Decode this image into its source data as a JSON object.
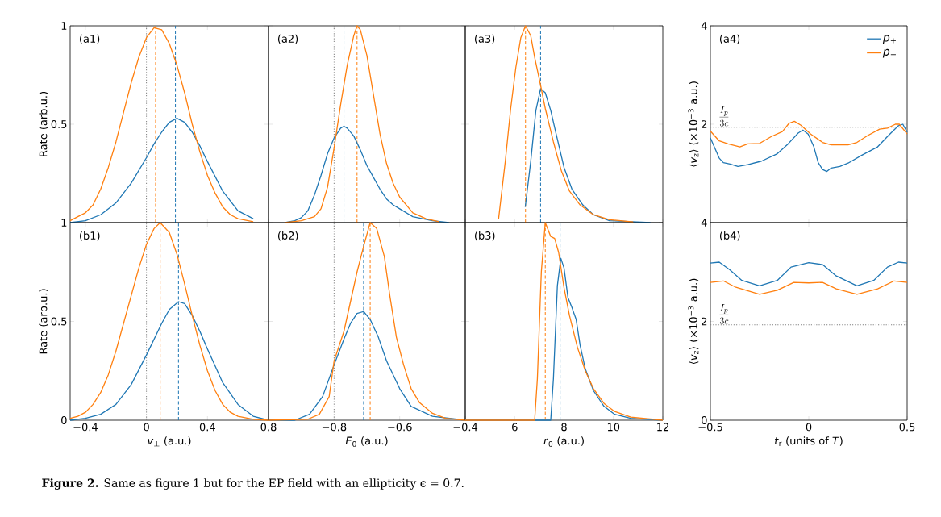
{
  "chart_data": [
    {
      "type": "line",
      "title": "(a1)",
      "ylabel": "Rate (arb.u.)",
      "xlim": [
        -0.5,
        0.8
      ],
      "ylim": [
        0,
        1
      ],
      "xticks": [
        -0.4,
        0,
        0.4,
        0.8
      ],
      "yticks": [
        {
          "value": 0,
          "label": null
        },
        0.5,
        1
      ],
      "tick_labels": "y",
      "annotations": [
        "**Figure 2.** Same as figure 1 but for the EP field with an ellipticity ϵ = 0.7."
      ],
      "ref_lines": [
        {
          "axis": "x",
          "value": 0,
          "color": "#808080",
          "line_style": "dotted"
        },
        {
          "axis": "x",
          "value": 0.06,
          "color": "#ff7f0e",
          "line_style": "dashed"
        },
        {
          "axis": "x",
          "value": 0.19,
          "color": "#1f77b4",
          "line_style": "dashed"
        }
      ],
      "series": [
        {
          "color": "#1f77b4",
          "x": [
            -0.5,
            -0.4,
            -0.3,
            -0.2,
            -0.1,
            0,
            0.05,
            0.1,
            0.15,
            0.2,
            0.25,
            0.3,
            0.35,
            0.4,
            0.5,
            0.6,
            0.7
          ],
          "values": [
            0,
            0.01,
            0.04,
            0.1,
            0.2,
            0.33,
            0.4,
            0.46,
            0.51,
            0.53,
            0.51,
            0.46,
            0.39,
            0.31,
            0.16,
            0.06,
            0.02
          ]
        },
        {
          "color": "#ff7f0e",
          "x": [
            -0.5,
            -0.45,
            -0.4,
            -0.35,
            -0.3,
            -0.25,
            -0.2,
            -0.15,
            -0.1,
            -0.05,
            0,
            0.05,
            0.1,
            0.15,
            0.2,
            0.25,
            0.3,
            0.35,
            0.4,
            0.45,
            0.5,
            0.55,
            0.6,
            0.7
          ],
          "values": [
            0.01,
            0.03,
            0.05,
            0.09,
            0.17,
            0.28,
            0.41,
            0.56,
            0.71,
            0.84,
            0.94,
            0.99,
            0.98,
            0.91,
            0.8,
            0.66,
            0.5,
            0.36,
            0.24,
            0.15,
            0.08,
            0.04,
            0.02,
            0.005
          ]
        }
      ]
    },
    {
      "type": "line",
      "title": "(a2)",
      "xlim": [
        -1.0,
        -0.4
      ],
      "ylim": [
        0,
        1
      ],
      "xticks": [
        -1.0,
        -0.8,
        -0.6,
        -0.4
      ],
      "yticks": [
        0,
        0.5,
        1
      ],
      "tick_labels": false,
      "ref_lines": [
        {
          "axis": "x",
          "value": -0.8,
          "color": "#808080",
          "line_style": "dotted"
        },
        {
          "axis": "x",
          "value": -0.77,
          "color": "#1f77b4",
          "line_style": "dashed"
        },
        {
          "axis": "x",
          "value": -0.73,
          "color": "#ff7f0e",
          "line_style": "dashed"
        }
      ],
      "series": [
        {
          "color": "#1f77b4",
          "x": [
            -0.95,
            -0.92,
            -0.9,
            -0.88,
            -0.86,
            -0.84,
            -0.82,
            -0.8,
            -0.78,
            -0.77,
            -0.76,
            -0.74,
            -0.72,
            -0.7,
            -0.68,
            -0.66,
            -0.64,
            -0.62,
            -0.6,
            -0.56,
            -0.5,
            -0.45
          ],
          "values": [
            0,
            0.01,
            0.025,
            0.06,
            0.14,
            0.24,
            0.35,
            0.43,
            0.48,
            0.49,
            0.48,
            0.44,
            0.37,
            0.29,
            0.23,
            0.17,
            0.12,
            0.09,
            0.07,
            0.03,
            0.01,
            0
          ]
        },
        {
          "color": "#ff7f0e",
          "x": [
            -0.95,
            -0.9,
            -0.86,
            -0.84,
            -0.82,
            -0.8,
            -0.78,
            -0.76,
            -0.74,
            -0.73,
            -0.72,
            -0.7,
            -0.68,
            -0.66,
            -0.64,
            -0.62,
            -0.6,
            -0.56,
            -0.52,
            -0.48
          ],
          "values": [
            0,
            0.01,
            0.03,
            0.07,
            0.18,
            0.38,
            0.6,
            0.8,
            0.95,
            1.0,
            0.98,
            0.85,
            0.65,
            0.45,
            0.3,
            0.2,
            0.13,
            0.05,
            0.02,
            0.005
          ]
        }
      ]
    },
    {
      "type": "line",
      "title": "(a3)",
      "xlim": [
        4,
        12
      ],
      "ylim": [
        0,
        1
      ],
      "xticks": [
        4,
        6,
        8,
        10,
        12
      ],
      "yticks": [
        0,
        0.5,
        1
      ],
      "tick_labels": false,
      "ref_lines": [
        {
          "axis": "x",
          "value": 6.44,
          "color": "#ff7f0e",
          "line_style": "dashed"
        },
        {
          "axis": "x",
          "value": 7.05,
          "color": "#1f77b4",
          "line_style": "dashed"
        }
      ],
      "series": [
        {
          "color": "#1f77b4",
          "x": [
            6.43,
            6.65,
            6.86,
            7.05,
            7.24,
            7.46,
            7.68,
            8.0,
            8.32,
            8.76,
            9.19,
            9.84,
            11.5
          ],
          "values": [
            0.08,
            0.31,
            0.57,
            0.68,
            0.66,
            0.57,
            0.45,
            0.28,
            0.17,
            0.09,
            0.04,
            0.01,
            0
          ]
        },
        {
          "color": "#ff7f0e",
          "x": [
            5.35,
            5.62,
            5.84,
            6.05,
            6.25,
            6.44,
            6.65,
            6.81,
            7.03,
            7.24,
            7.57,
            7.9,
            8.22,
            8.65,
            9.19,
            9.84,
            10.8
          ],
          "values": [
            0.02,
            0.31,
            0.58,
            0.79,
            0.94,
            1.0,
            0.95,
            0.84,
            0.71,
            0.58,
            0.41,
            0.26,
            0.16,
            0.09,
            0.04,
            0.015,
            0.003
          ]
        }
      ]
    },
    {
      "type": "line",
      "title": "(a4)",
      "ylabel": "⟨*v*$_{z}$⟩ (×10$^{−3}$ a.u.)",
      "xlim": [
        -0.5,
        0.5
      ],
      "ylim": [
        0,
        4
      ],
      "xticks": [
        -0.5,
        0,
        0.5
      ],
      "yticks": [
        {
          "value": 0,
          "label": null
        },
        2,
        4
      ],
      "tick_labels": "y",
      "legend": "top right",
      "ref_lines": [
        {
          "axis": "y",
          "value": 1.94,
          "color": "#808080",
          "line_style": "dotted",
          "label": "\\frac{I_p}{3c}"
        }
      ],
      "series": [
        {
          "name": "*p*$_{+}$",
          "color": "#1f77b4",
          "x": [
            -0.5,
            -0.455,
            -0.434,
            -0.4,
            -0.36,
            -0.31,
            -0.24,
            -0.16,
            -0.105,
            -0.054,
            -0.03,
            -0.003,
            0.026,
            0.048,
            0.07,
            0.092,
            0.114,
            0.158,
            0.2,
            0.27,
            0.35,
            0.405,
            0.456,
            0.478,
            0.5
          ],
          "values": [
            1.72,
            1.31,
            1.22,
            1.19,
            1.14,
            1.18,
            1.25,
            1.4,
            1.6,
            1.82,
            1.88,
            1.8,
            1.54,
            1.22,
            1.08,
            1.04,
            1.11,
            1.14,
            1.21,
            1.37,
            1.54,
            1.77,
            1.97,
            2.0,
            1.84
          ]
        },
        {
          "name": "*p*$_{−}$",
          "color": "#ff7f0e",
          "x": [
            -0.5,
            -0.455,
            -0.41,
            -0.35,
            -0.31,
            -0.25,
            -0.19,
            -0.134,
            -0.1,
            -0.073,
            -0.04,
            0.01,
            0.07,
            0.114,
            0.2,
            0.245,
            0.3,
            0.36,
            0.4,
            0.44,
            0.46,
            0.5
          ],
          "values": [
            1.86,
            1.66,
            1.6,
            1.54,
            1.6,
            1.61,
            1.75,
            1.85,
            2.02,
            2.06,
            1.98,
            1.8,
            1.63,
            1.58,
            1.58,
            1.63,
            1.77,
            1.9,
            1.92,
            2.0,
            2.0,
            1.8
          ]
        }
      ]
    },
    {
      "type": "line",
      "title": "(b1)",
      "xlabel": "*v*$_{⊥}$ (a.u.)",
      "ylabel": "Rate (arb.u.)",
      "xlim": [
        -0.5,
        0.8
      ],
      "ylim": [
        0,
        1
      ],
      "xticks": [
        {
          "value": -0.4,
          "label": "−0.4"
        },
        0,
        0.4,
        0.8
      ],
      "yticks": [
        0,
        0.5,
        1
      ],
      "ref_lines": [
        {
          "axis": "x",
          "value": 0,
          "color": "#808080",
          "line_style": "dotted"
        },
        {
          "axis": "x",
          "value": 0.09,
          "color": "#ff7f0e",
          "line_style": "dashed"
        },
        {
          "axis": "x",
          "value": 0.21,
          "color": "#1f77b4",
          "line_style": "dashed"
        }
      ],
      "series": [
        {
          "color": "#1f77b4",
          "x": [
            -0.5,
            -0.4,
            -0.3,
            -0.2,
            -0.1,
            0,
            0.05,
            0.1,
            0.15,
            0.21,
            0.25,
            0.3,
            0.35,
            0.4,
            0.5,
            0.6,
            0.7,
            0.8
          ],
          "values": [
            0,
            0.01,
            0.03,
            0.08,
            0.18,
            0.33,
            0.41,
            0.49,
            0.56,
            0.6,
            0.59,
            0.53,
            0.45,
            0.36,
            0.19,
            0.08,
            0.02,
            0
          ]
        },
        {
          "color": "#ff7f0e",
          "x": [
            -0.5,
            -0.45,
            -0.4,
            -0.35,
            -0.3,
            -0.25,
            -0.2,
            -0.15,
            -0.1,
            -0.05,
            0,
            0.05,
            0.09,
            0.15,
            0.2,
            0.25,
            0.3,
            0.35,
            0.4,
            0.45,
            0.5,
            0.55,
            0.6,
            0.7,
            0.8
          ],
          "values": [
            0.01,
            0.02,
            0.04,
            0.08,
            0.14,
            0.23,
            0.35,
            0.49,
            0.63,
            0.77,
            0.89,
            0.97,
            1.0,
            0.95,
            0.84,
            0.69,
            0.53,
            0.38,
            0.25,
            0.15,
            0.08,
            0.04,
            0.02,
            0.005,
            0
          ]
        }
      ]
    },
    {
      "type": "line",
      "title": "(b2)",
      "xlabel": "*E*$_{0}$ (a.u.)",
      "xlim": [
        -1.0,
        -0.4
      ],
      "ylim": [
        0,
        1
      ],
      "xticks": [
        {
          "value": -1.0,
          "label": null
        },
        {
          "value": -0.8,
          "label": "−0.8"
        },
        {
          "value": -0.6,
          "label": "−0.6"
        },
        {
          "value": -0.4,
          "label": "−0.4"
        }
      ],
      "yticks": [
        0,
        0.5,
        1
      ],
      "tick_labels": "x",
      "ref_lines": [
        {
          "axis": "x",
          "value": -0.8,
          "color": "#808080",
          "line_style": "dotted"
        },
        {
          "axis": "x",
          "value": -0.71,
          "color": "#1f77b4",
          "line_style": "dashed"
        },
        {
          "axis": "x",
          "value": -0.69,
          "color": "#ff7f0e",
          "line_style": "dashed"
        }
      ],
      "series": [
        {
          "color": "#1f77b4",
          "x": [
            -1.0,
            -0.92,
            -0.875,
            -0.835,
            -0.8,
            -0.77,
            -0.75,
            -0.73,
            -0.71,
            -0.69,
            -0.665,
            -0.64,
            -0.6,
            -0.565,
            -0.5,
            -0.4
          ],
          "values": [
            0,
            0,
            0.03,
            0.12,
            0.28,
            0.41,
            0.49,
            0.54,
            0.55,
            0.51,
            0.42,
            0.3,
            0.16,
            0.07,
            0.02,
            0
          ]
        },
        {
          "color": "#ff7f0e",
          "x": [
            -1.0,
            -0.88,
            -0.845,
            -0.815,
            -0.8,
            -0.77,
            -0.73,
            -0.71,
            -0.69,
            -0.67,
            -0.647,
            -0.63,
            -0.61,
            -0.588,
            -0.565,
            -0.54,
            -0.5,
            -0.46,
            -0.4
          ],
          "values": [
            0,
            0.005,
            0.03,
            0.12,
            0.3,
            0.45,
            0.75,
            0.88,
            1.0,
            0.97,
            0.83,
            0.63,
            0.42,
            0.28,
            0.16,
            0.09,
            0.035,
            0.01,
            0
          ]
        }
      ]
    },
    {
      "type": "line",
      "title": "(b3)",
      "xlabel": "*r*$_{0}$ (a.u.)",
      "xlim": [
        4,
        12
      ],
      "ylim": [
        0,
        1
      ],
      "xticks": [
        {
          "value": 4,
          "label": null
        },
        6,
        8,
        10,
        12
      ],
      "yticks": [
        0,
        0.5,
        1
      ],
      "tick_labels": "x",
      "ref_lines": [
        {
          "axis": "x",
          "value": 7.24,
          "color": "#ff7f0e",
          "line_style": "dashed"
        },
        {
          "axis": "x",
          "value": 7.84,
          "color": "#1f77b4",
          "line_style": "dashed"
        }
      ],
      "series": [
        {
          "color": "#1f77b4",
          "x": [
            4,
            7.46,
            7.57,
            7.73,
            7.87,
            8.0,
            8.16,
            8.32,
            8.49,
            8.65,
            8.86,
            9.19,
            9.62,
            10.05,
            10.7,
            12
          ],
          "values": [
            0,
            0,
            0.21,
            0.68,
            0.82,
            0.77,
            0.62,
            0.57,
            0.51,
            0.38,
            0.26,
            0.15,
            0.07,
            0.03,
            0.01,
            0
          ]
        },
        {
          "color": "#ff7f0e",
          "x": [
            4,
            6.81,
            6.92,
            7.08,
            7.24,
            7.46,
            7.62,
            7.78,
            8.0,
            8.22,
            8.54,
            8.86,
            9.19,
            9.62,
            10.05,
            10.7,
            12
          ],
          "values": [
            0,
            0,
            0.21,
            0.75,
            1.0,
            0.93,
            0.92,
            0.85,
            0.67,
            0.53,
            0.37,
            0.25,
            0.16,
            0.085,
            0.044,
            0.016,
            0
          ]
        }
      ]
    },
    {
      "type": "line",
      "title": "(b4)",
      "xlabel": "*t*$_{r}$ (units of *T*)",
      "ylabel": "⟨*v*$_{z}$⟩ (×10$^{−3}$ a.u.)",
      "xlim": [
        -0.5,
        0.5
      ],
      "ylim": [
        0,
        4
      ],
      "xticks": [
        {
          "value": -0.5,
          "label": "−0.5"
        },
        0,
        0.5
      ],
      "yticks": [
        0,
        2,
        4
      ],
      "ref_lines": [
        {
          "axis": "y",
          "value": 1.93,
          "color": "#808080",
          "line_style": "dotted",
          "label": "\\frac{I_p}{3c}"
        }
      ],
      "series": [
        {
          "color": "#1f77b4",
          "x": [
            -0.5,
            -0.455,
            -0.4,
            -0.34,
            -0.25,
            -0.16,
            -0.09,
            0,
            0.07,
            0.14,
            0.245,
            0.33,
            0.4,
            0.456,
            0.5
          ],
          "values": [
            3.18,
            3.2,
            3.04,
            2.83,
            2.72,
            2.83,
            3.1,
            3.19,
            3.15,
            2.92,
            2.72,
            2.83,
            3.1,
            3.2,
            3.18
          ]
        },
        {
          "color": "#ff7f0e",
          "x": [
            -0.5,
            -0.434,
            -0.37,
            -0.25,
            -0.16,
            -0.076,
            0,
            0.07,
            0.14,
            0.245,
            0.35,
            0.434,
            0.5
          ],
          "values": [
            2.79,
            2.82,
            2.69,
            2.55,
            2.63,
            2.79,
            2.78,
            2.79,
            2.66,
            2.55,
            2.66,
            2.82,
            2.79
          ]
        }
      ]
    }
  ]
}
